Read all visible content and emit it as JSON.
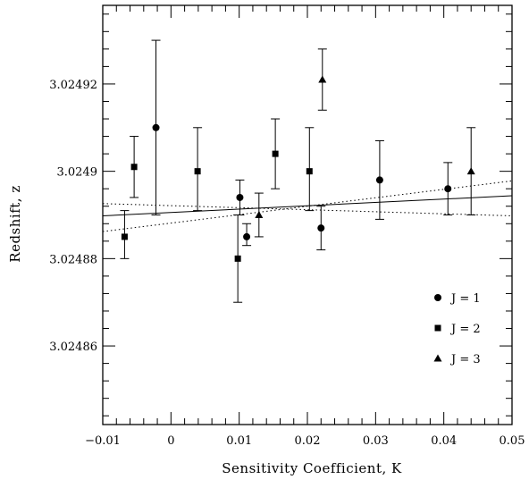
{
  "chart_data": {
    "type": "scatter",
    "title": "",
    "xlabel": "Sensitivity Coefficient, K",
    "ylabel": "Redshift, z",
    "xlim": [
      -0.01,
      0.05
    ],
    "ylim": [
      3.024842,
      3.024938
    ],
    "x_ticks": [
      -0.01,
      0,
      0.01,
      0.02,
      0.03,
      0.04,
      0.05
    ],
    "x_tick_labels": [
      "−0.01",
      "0",
      "0.01",
      "0.02",
      "0.03",
      "0.04",
      "0.05"
    ],
    "y_ticks": [
      3.02486,
      3.02488,
      3.0249,
      3.02492
    ],
    "y_tick_labels": [
      "3.02486",
      "3.02488",
      "3.0249",
      "3.02492"
    ],
    "grid": false,
    "legend_position": "bottom-right",
    "series": [
      {
        "name": "J = 1",
        "marker": "circle",
        "points": [
          {
            "x": -0.0022,
            "y": 3.02491,
            "err_low": 3.02489,
            "err_high": 3.02493
          },
          {
            "x": 0.0101,
            "y": 3.024894,
            "err_low": 3.02489,
            "err_high": 3.024898
          },
          {
            "x": 0.0111,
            "y": 3.024885,
            "err_low": 3.024883,
            "err_high": 3.024888
          },
          {
            "x": 0.022,
            "y": 3.024887,
            "err_low": 3.024882,
            "err_high": 3.024892
          },
          {
            "x": 0.0306,
            "y": 3.024898,
            "err_low": 3.024889,
            "err_high": 3.024907
          },
          {
            "x": 0.0406,
            "y": 3.024896,
            "err_low": 3.02489,
            "err_high": 3.024902
          }
        ]
      },
      {
        "name": "J = 2",
        "marker": "square",
        "points": [
          {
            "x": -0.0068,
            "y": 3.024885,
            "err_low": 3.02488,
            "err_high": 3.024891
          },
          {
            "x": -0.0054,
            "y": 3.024901,
            "err_low": 3.024894,
            "err_high": 3.024908
          },
          {
            "x": 0.0039,
            "y": 3.0249,
            "err_low": 3.024891,
            "err_high": 3.02491
          },
          {
            "x": 0.0098,
            "y": 3.02488,
            "err_low": 3.02487,
            "err_high": 3.02489
          },
          {
            "x": 0.0153,
            "y": 3.024904,
            "err_low": 3.024896,
            "err_high": 3.024912
          },
          {
            "x": 0.0203,
            "y": 3.0249,
            "err_low": 3.024891,
            "err_high": 3.02491
          }
        ]
      },
      {
        "name": "J = 3",
        "marker": "triangle",
        "points": [
          {
            "x": 0.0129,
            "y": 3.02489,
            "err_low": 3.024885,
            "err_high": 3.024895
          },
          {
            "x": 0.0222,
            "y": 3.024921,
            "err_low": 3.024914,
            "err_high": 3.024928
          },
          {
            "x": 0.044,
            "y": 3.0249,
            "err_low": 3.02489,
            "err_high": 3.02491
          }
        ]
      }
    ],
    "fit_lines": [
      {
        "style": "solid",
        "x": [
          -0.01,
          0.05
        ],
        "y": [
          3.0248898,
          3.0248944
        ]
      },
      {
        "style": "dotted",
        "x": [
          -0.01,
          0.05
        ],
        "y": [
          3.0248862,
          3.0248978
        ]
      },
      {
        "style": "dotted",
        "x": [
          -0.01,
          0.05
        ],
        "y": [
          3.0248926,
          3.0248898
        ]
      }
    ]
  }
}
